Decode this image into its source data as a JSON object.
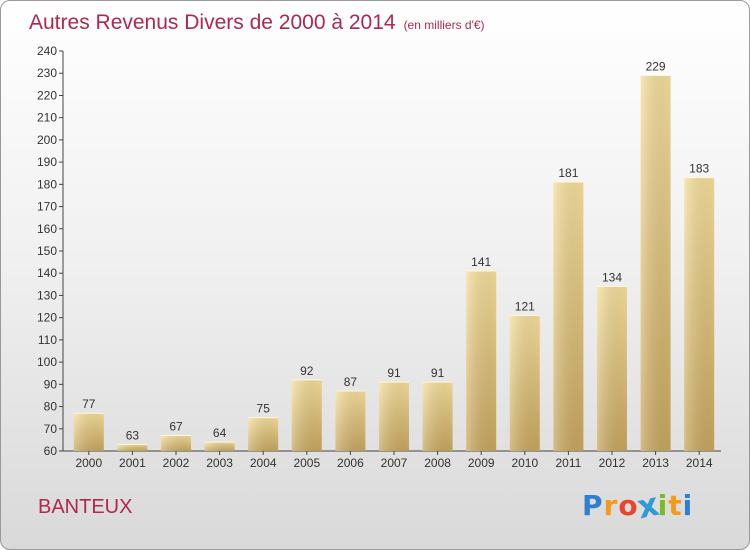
{
  "chart_data": {
    "type": "bar",
    "title": "Autres Revenus Divers de 2000 à 2014",
    "subtitle": "(en milliers d'€)",
    "categories": [
      "2000",
      "2001",
      "2002",
      "2003",
      "2004",
      "2005",
      "2006",
      "2007",
      "2008",
      "2009",
      "2010",
      "2011",
      "2012",
      "2013",
      "2014"
    ],
    "values": [
      77,
      63,
      67,
      64,
      75,
      92,
      87,
      91,
      91,
      141,
      121,
      181,
      134,
      229,
      183
    ],
    "ylim": [
      60,
      240
    ],
    "yticks": [
      60,
      70,
      80,
      90,
      100,
      110,
      120,
      130,
      140,
      150,
      160,
      170,
      180,
      190,
      200,
      210,
      220,
      230,
      240
    ],
    "grid": false,
    "bar_color": "#e9cf86",
    "legend": "none"
  },
  "footer": {
    "commune": "BANTEUX",
    "logo_letters": [
      "P",
      "r",
      "o",
      "x",
      "i",
      "t",
      "i"
    ],
    "logo_colors": [
      "#2f7fd0",
      "#f39a1c",
      "#e8452c",
      "#2f9ad8",
      "#7cb828",
      "#f39a1c",
      "#2f7fd0"
    ]
  },
  "colors": {
    "title": "#b0284c",
    "axis": "#333333",
    "label": "#333333"
  }
}
